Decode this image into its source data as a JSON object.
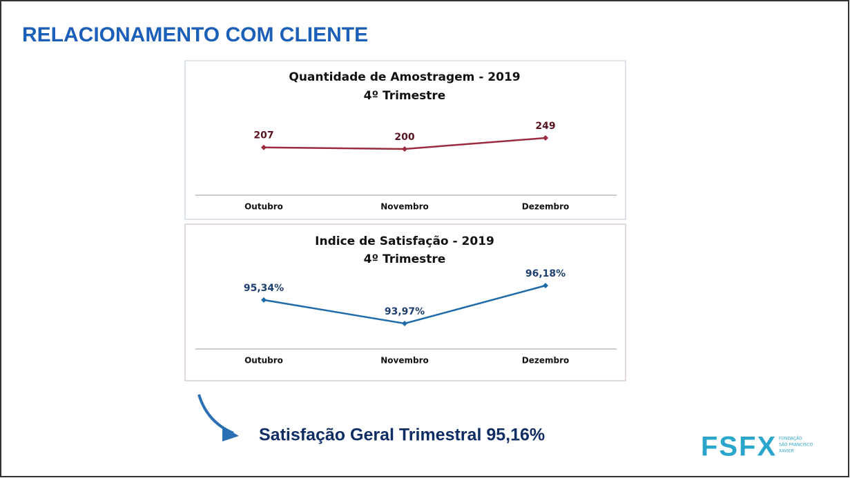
{
  "slide_title": "RELACIONAMENTO COM CLIENTE",
  "chart_data": [
    {
      "type": "line",
      "title": "Quantidade de Amostragem - 2019",
      "subtitle": "4º Trimestre",
      "categories": [
        "Outubro",
        "Novembro",
        "Dezembro"
      ],
      "values": [
        207,
        200,
        249
      ],
      "color": "#9b2a3c"
    },
    {
      "type": "line",
      "title": "Indice de Satisfação - 2019",
      "subtitle": "4º Trimestre",
      "categories": [
        "Outubro",
        "Novembro",
        "Dezembro"
      ],
      "values": [
        95.34,
        93.97,
        96.18
      ],
      "value_labels": [
        "95,34%",
        "93,97%",
        "96,18%"
      ],
      "color": "#1f6aa8"
    }
  ],
  "summary": "Satisfação Geral Trimestral 95,16%",
  "logo": {
    "mark": "FSFX",
    "lines": [
      "FUNDAÇÃO",
      "SÃO FRANCISCO",
      "XAVIER"
    ]
  }
}
